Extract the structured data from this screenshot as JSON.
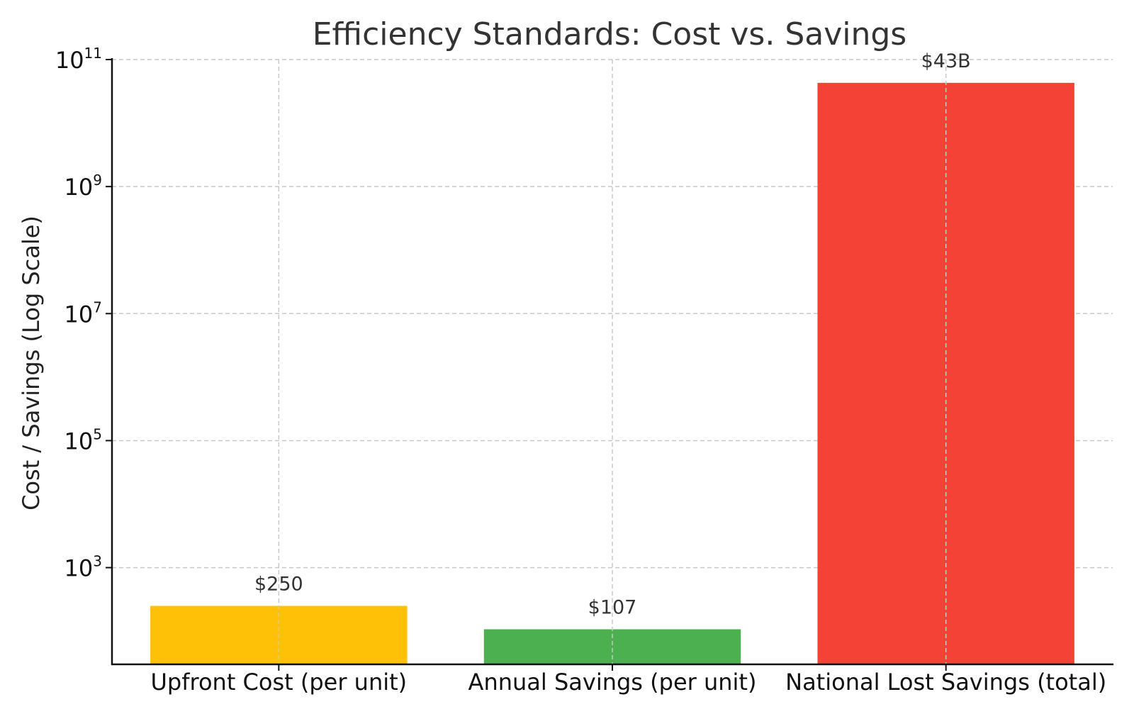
{
  "chart_data": {
    "type": "bar",
    "title": "Efficiency Standards: Cost vs. Savings",
    "xlabel": "",
    "ylabel": "Cost / Savings (Log Scale)",
    "yscale": "log",
    "ylim": [
      30,
      100000000000
    ],
    "grid": true,
    "categories": [
      "Upfront Cost (per unit)",
      "Annual Savings (per unit)",
      "National Lost Savings (total)"
    ],
    "values": [
      250,
      107,
      43000000000
    ],
    "data_labels": [
      "$250",
      "$107",
      "$43B"
    ],
    "colors": [
      "#FFC107",
      "#4CAF50",
      "#F44336"
    ],
    "y_ticks": [
      {
        "value": 1000,
        "base": "10",
        "exp": "3"
      },
      {
        "value": 100000,
        "base": "10",
        "exp": "5"
      },
      {
        "value": 10000000,
        "base": "10",
        "exp": "7"
      },
      {
        "value": 1000000000,
        "base": "10",
        "exp": "9"
      },
      {
        "value": 100000000000,
        "base": "10",
        "exp": "11"
      }
    ]
  }
}
